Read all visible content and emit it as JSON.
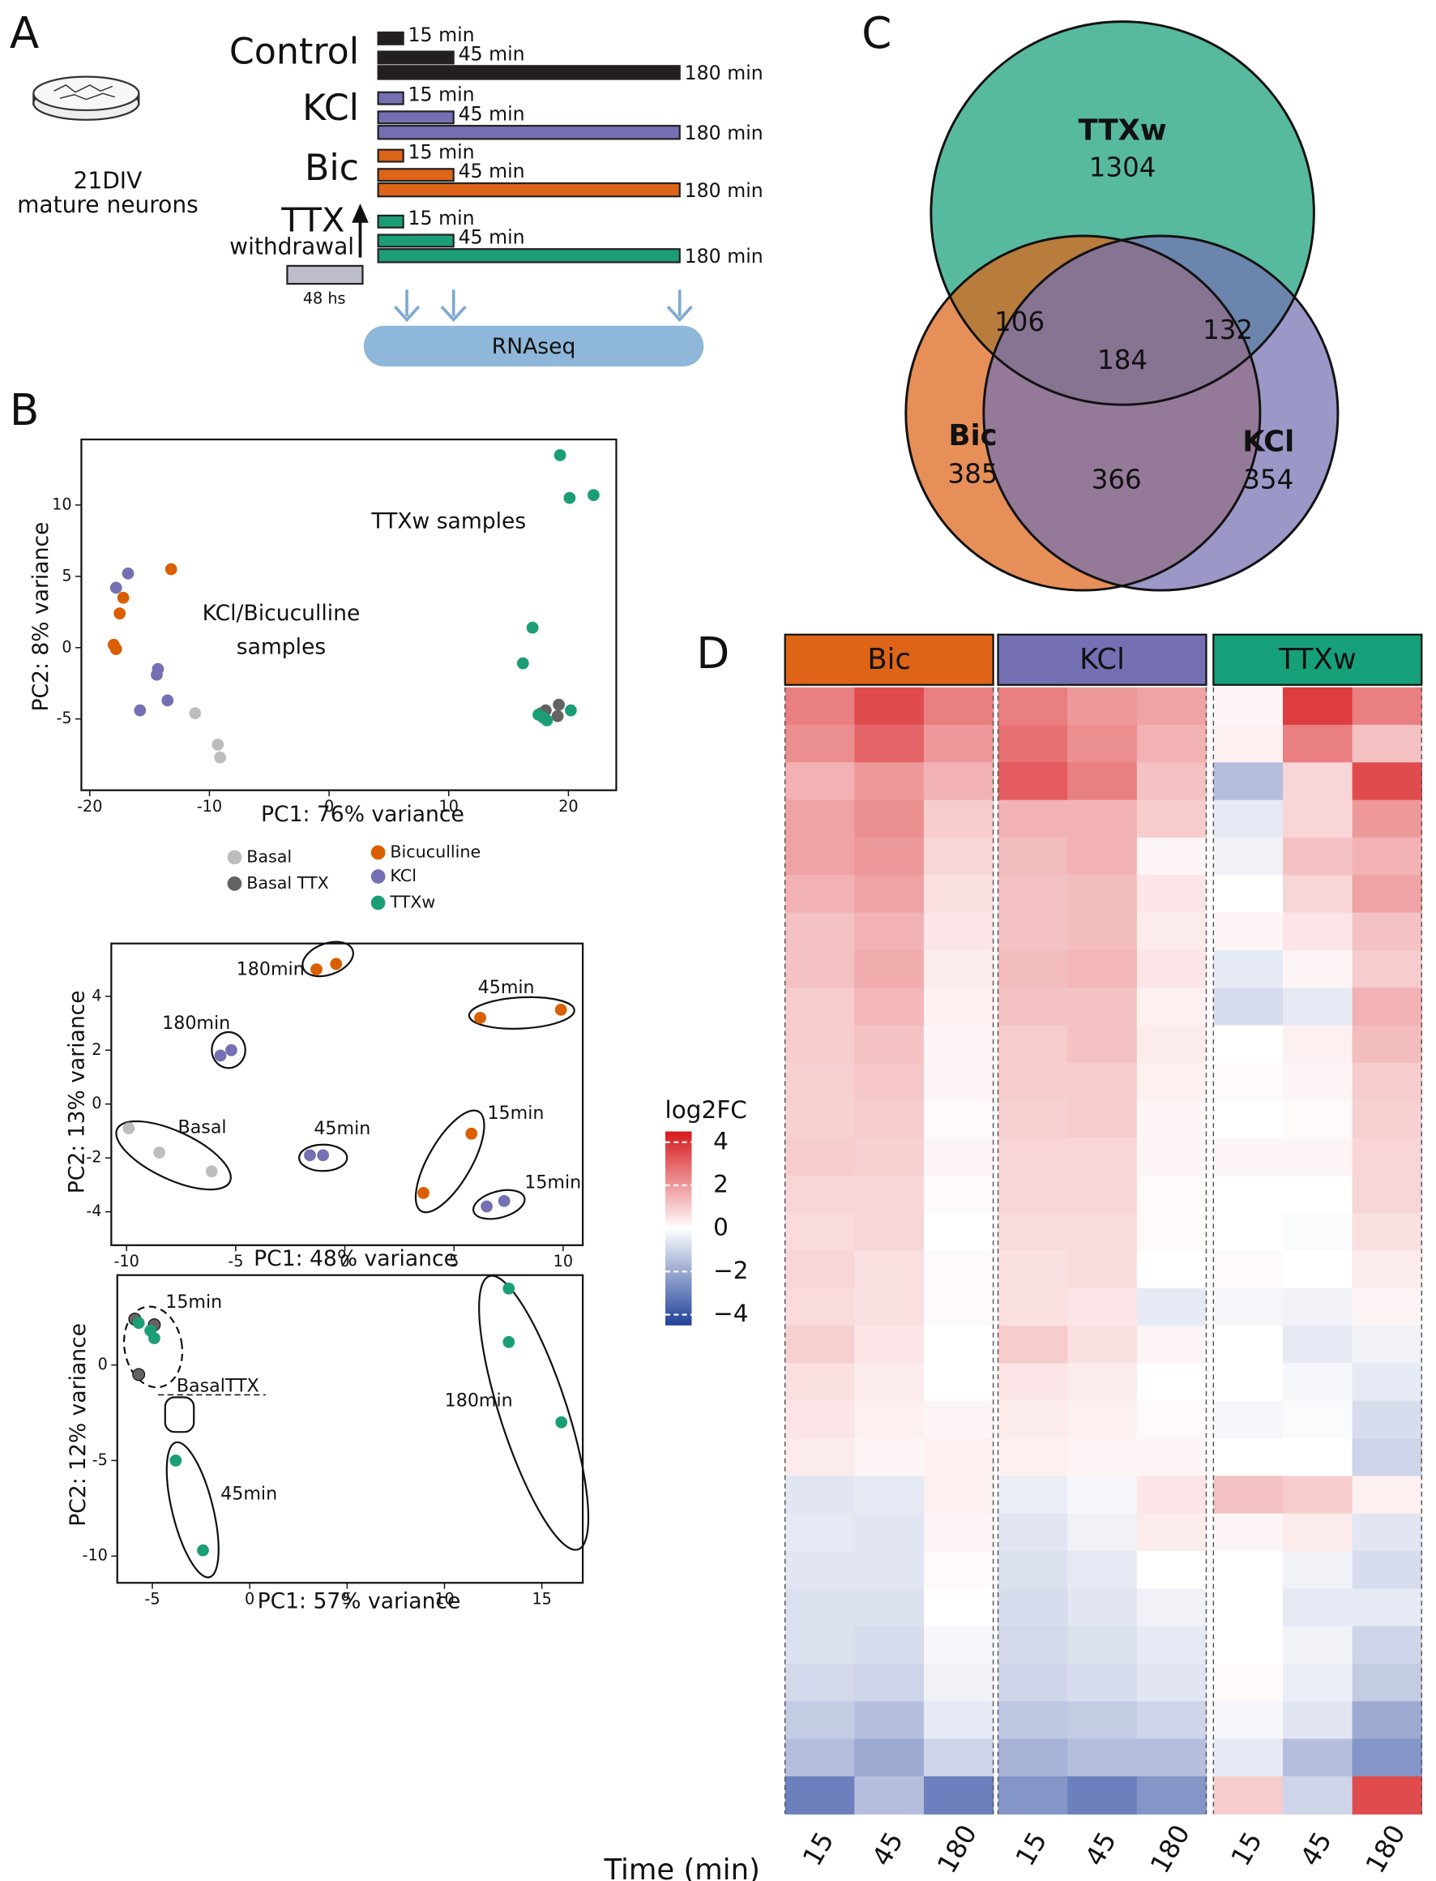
{
  "panel_labels": [
    "A",
    "B",
    "C",
    "D"
  ],
  "design": {
    "dish_label": [
      "21DIV",
      "mature neurons"
    ],
    "conditions": [
      {
        "name": "Control",
        "color": "#231f20"
      },
      {
        "name": "KCl",
        "color": "#7570b3"
      },
      {
        "name": "Bic",
        "color": "#de6418"
      },
      {
        "name": "TTX",
        "color": "#1b9e77"
      }
    ],
    "withdrawal": "withdrawal",
    "times": [
      {
        "value": 15,
        "label": "15 min"
      },
      {
        "value": 45,
        "label": "45 min"
      },
      {
        "value": 180,
        "label": "180 min"
      }
    ],
    "pretreatment": "48 hs",
    "assay": "RNAseq"
  },
  "chart_data": [
    {
      "type": "scatter",
      "xlabel": "PC1: 76% variance",
      "ylabel": "PC2: 8% variance",
      "xlim": [
        -20.7,
        24
      ],
      "ylim": [
        -10,
        14.6
      ],
      "xticks": [
        -20,
        -10,
        0,
        10,
        20
      ],
      "yticks": [
        -5,
        0,
        5,
        10
      ],
      "annotations": [
        "TTXw samples",
        "KCl/Bicuculline",
        "samples"
      ],
      "series": [
        {
          "name": "Basal",
          "color": "#bdbdbd",
          "x": [
            -11.2,
            -9.3,
            -9.1
          ],
          "y": [
            -4.6,
            -6.8,
            -7.7
          ]
        },
        {
          "name": "Basal TTX",
          "color": "#636363",
          "x": [
            19.2,
            18.1,
            19.1,
            17.7
          ],
          "y": [
            -4.0,
            -4.4,
            -4.8,
            -4.6
          ]
        },
        {
          "name": "Bicuculline",
          "color": "#d95f02",
          "x": [
            -13.2,
            -17.2,
            -17.5,
            -18,
            -17.8
          ],
          "y": [
            5.5,
            3.5,
            2.4,
            0.2,
            -0.1
          ]
        },
        {
          "name": "KCl",
          "color": "#7570b3",
          "x": [
            -16.8,
            -17.8,
            -14.3,
            -14.4,
            -13.5,
            -15.8
          ],
          "y": [
            5.2,
            4.2,
            -1.5,
            -1.9,
            -3.7,
            -4.4
          ]
        },
        {
          "name": "TTXw",
          "color": "#1b9e77",
          "x": [
            19.3,
            20.1,
            22.1,
            17.0,
            16.2,
            17.5,
            18.2,
            20.2,
            17.9
          ],
          "y": [
            13.5,
            10.5,
            10.7,
            1.4,
            -1.1,
            -4.7,
            -5.1,
            -4.4,
            -4.9
          ]
        }
      ]
    },
    {
      "type": "scatter",
      "xlabel": "PC1: 48% variance",
      "ylabel": "PC2: 13% variance",
      "xlim": [
        -10.7,
        10.9
      ],
      "ylim": [
        -5.24,
        5.96
      ],
      "xticks": [
        -10,
        -5,
        0,
        5,
        10
      ],
      "yticks": [
        -4,
        -2,
        0,
        2,
        4
      ],
      "annotations": [
        "180min",
        "45min",
        "180min",
        "Basal",
        "45min",
        "15min",
        "15min"
      ],
      "series": [
        {
          "color": "#d95f02",
          "x": [
            -1.3,
            -0.4,
            6.2,
            9.9,
            5.8,
            3.6
          ],
          "y": [
            5.0,
            5.2,
            3.2,
            3.5,
            -1.1,
            -3.3
          ]
        },
        {
          "color": "#7570b3",
          "x": [
            -5.7,
            -5.2,
            -1.6,
            -1.0,
            6.5,
            7.3
          ],
          "y": [
            1.8,
            2.0,
            -1.9,
            -1.9,
            -3.8,
            -3.6
          ]
        },
        {
          "color": "#bdbdbd",
          "x": [
            -9.9,
            -8.5,
            -6.1
          ],
          "y": [
            -0.9,
            -1.8,
            -2.5
          ]
        }
      ]
    },
    {
      "type": "scatter",
      "xlabel": "PC1: 57% variance",
      "ylabel": "PC2: 12% variance",
      "xlim": [
        -6.8,
        17.1
      ],
      "ylim": [
        -11.4,
        4.7
      ],
      "xticks": [
        -5,
        0,
        5,
        10,
        15
      ],
      "yticks": [
        -10,
        -5,
        0
      ],
      "annotations": [
        "15min",
        "BasalTTX",
        "180min",
        "45min"
      ],
      "series": [
        {
          "color": "#636363",
          "x": [
            -5.9,
            -4.9,
            -5.7
          ],
          "y": [
            2.4,
            2.1,
            -0.5
          ]
        },
        {
          "color": "#1b9e77",
          "x": [
            13.3,
            13.3,
            16.0,
            -3.8,
            -2.4,
            -5.7,
            -5.1,
            -4.9
          ],
          "y": [
            4.0,
            1.2,
            -3.0,
            -5.0,
            -9.7,
            2.2,
            1.8,
            1.4
          ]
        }
      ]
    },
    {
      "type": "venn",
      "sets": [
        "TTXw",
        "Bic",
        "KCl"
      ],
      "colors": [
        "#16a07a",
        "#de6418",
        "#7570b3"
      ],
      "values": [
        1304,
        385,
        354,
        106,
        132,
        366,
        184
      ]
    },
    {
      "type": "heatmap",
      "groups": [
        "Bic",
        "KCl",
        "TTXw"
      ],
      "group_colors": [
        "#de6418",
        "#7570b3",
        "#16a07a"
      ],
      "times": [
        15,
        45,
        180
      ],
      "xlabel": "Time (min)",
      "colorbar_title": "log2FC",
      "clim": [
        -4.5,
        4.5
      ],
      "cticks": [
        {
          "value": -4,
          "label": "−4"
        },
        {
          "value": -2,
          "label": "−2"
        },
        0,
        2,
        4
      ],
      "matrix": [
        [
          2.5,
          3.5,
          2.5,
          2.5,
          2.0,
          1.8,
          0.2,
          3.8,
          2.5
        ],
        [
          2.2,
          3.0,
          2.0,
          2.8,
          2.2,
          1.5,
          0.3,
          2.5,
          1.2
        ],
        [
          1.5,
          2.0,
          1.5,
          3.2,
          2.5,
          1.2,
          -1.5,
          0.8,
          3.5
        ],
        [
          1.8,
          2.2,
          1.0,
          1.5,
          1.5,
          1.0,
          -0.5,
          0.8,
          2.0
        ],
        [
          1.8,
          2.0,
          0.8,
          1.3,
          1.5,
          0.2,
          -0.3,
          1.2,
          1.5
        ],
        [
          1.5,
          1.8,
          0.6,
          1.2,
          1.3,
          0.5,
          0.0,
          0.8,
          1.8
        ],
        [
          1.2,
          1.5,
          0.5,
          1.2,
          1.3,
          0.4,
          0.2,
          0.5,
          1.2
        ],
        [
          1.2,
          1.6,
          0.4,
          1.3,
          1.4,
          0.5,
          -0.5,
          0.2,
          1.0
        ],
        [
          1.0,
          1.4,
          0.3,
          1.2,
          1.2,
          0.3,
          -0.8,
          -0.5,
          1.5
        ],
        [
          1.0,
          1.2,
          0.2,
          1.0,
          1.2,
          0.4,
          0.0,
          0.3,
          1.3
        ],
        [
          0.9,
          1.1,
          0.2,
          1.0,
          1.0,
          0.3,
          0.1,
          0.2,
          1.0
        ],
        [
          0.9,
          1.0,
          0.1,
          0.9,
          1.0,
          0.2,
          0.0,
          0.1,
          0.9
        ],
        [
          1.0,
          0.9,
          0.2,
          0.8,
          0.8,
          0.2,
          0.2,
          0.2,
          0.8
        ],
        [
          0.8,
          0.8,
          0.1,
          0.8,
          0.8,
          0.1,
          0.0,
          0.0,
          0.8
        ],
        [
          0.7,
          0.8,
          0.0,
          0.7,
          0.7,
          0.1,
          0.0,
          -0.1,
          0.6
        ],
        [
          0.8,
          0.6,
          0.1,
          0.6,
          0.7,
          0.0,
          0.1,
          0.0,
          0.4
        ],
        [
          0.7,
          0.6,
          0.1,
          0.6,
          0.5,
          -0.5,
          -0.2,
          -0.3,
          0.2
        ],
        [
          0.9,
          0.5,
          0.0,
          1.0,
          0.6,
          0.2,
          0.0,
          -0.5,
          -0.3
        ],
        [
          0.6,
          0.4,
          0.0,
          0.5,
          0.4,
          0.0,
          0.0,
          -0.2,
          -0.5
        ],
        [
          0.5,
          0.3,
          0.2,
          0.4,
          0.3,
          0.1,
          -0.2,
          -0.1,
          -0.8
        ],
        [
          0.4,
          0.2,
          0.3,
          0.3,
          0.2,
          0.2,
          0.0,
          0.0,
          -1.0
        ],
        [
          -0.6,
          -0.5,
          0.3,
          -0.4,
          -0.2,
          0.5,
          1.2,
          1.0,
          0.3
        ],
        [
          -0.5,
          -0.6,
          0.2,
          -0.6,
          -0.3,
          0.4,
          0.2,
          0.4,
          -0.6
        ],
        [
          -0.6,
          -0.6,
          0.1,
          -0.7,
          -0.5,
          0.0,
          0.0,
          -0.3,
          -0.8
        ],
        [
          -0.7,
          -0.7,
          0.0,
          -0.8,
          -0.6,
          -0.3,
          0.0,
          -0.5,
          -0.5
        ],
        [
          -0.7,
          -0.8,
          -0.2,
          -0.9,
          -0.7,
          -0.5,
          0.0,
          -0.3,
          -1.0
        ],
        [
          -0.9,
          -1.0,
          -0.3,
          -1.0,
          -0.8,
          -0.6,
          0.1,
          -0.4,
          -1.2
        ],
        [
          -1.2,
          -1.5,
          -0.5,
          -1.3,
          -1.2,
          -1.0,
          -0.2,
          -0.6,
          -2.0
        ],
        [
          -1.5,
          -2.0,
          -1.0,
          -1.8,
          -1.5,
          -1.5,
          -0.5,
          -1.5,
          -2.5
        ],
        [
          -3.0,
          -1.5,
          -3.0,
          -2.5,
          -3.0,
          -2.5,
          1.0,
          -1.0,
          3.5
        ]
      ]
    }
  ]
}
